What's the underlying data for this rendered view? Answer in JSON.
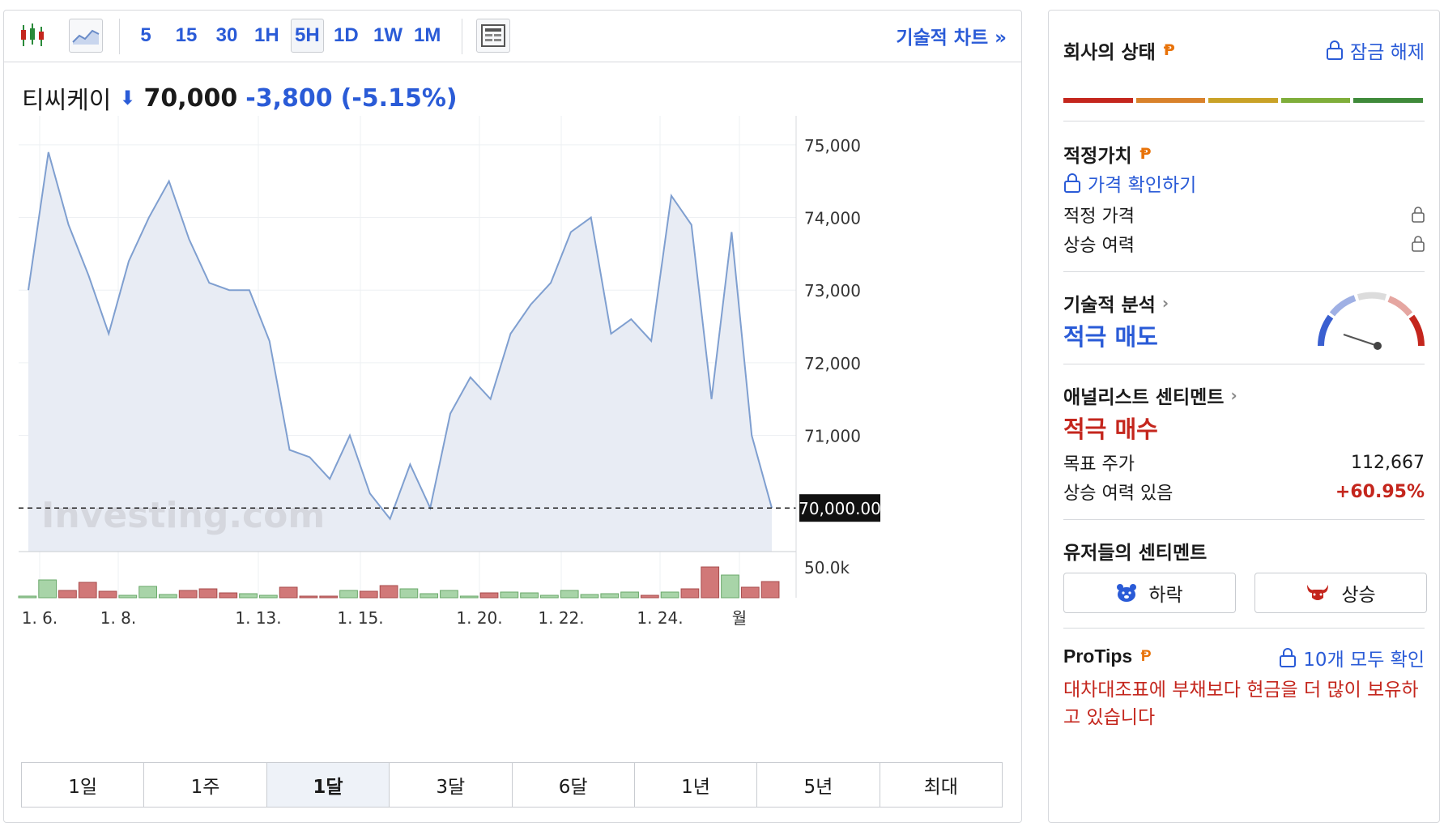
{
  "toolbar": {
    "intervals": [
      "5",
      "15",
      "30",
      "1H",
      "5H",
      "1D",
      "1W",
      "1M"
    ],
    "active_interval": "5H",
    "tech_chart_link": "기술적 차트 »"
  },
  "quote": {
    "name": "티씨케이",
    "direction": "down",
    "last": "70,000",
    "change": "-3,800",
    "change_pct": "(-5.15%)"
  },
  "chart_data": {
    "type": "area",
    "ylim": [
      69400,
      75400
    ],
    "y_ticks": [
      "75,000",
      "74,000",
      "73,000",
      "72,000",
      "71,000"
    ],
    "x_ticks": [
      "1. 6.",
      "1. 8.",
      "1. 13.",
      "1. 15.",
      "1. 20.",
      "1. 22.",
      "1. 24.",
      "월"
    ],
    "current_price_label": "70,000.00",
    "current_price": 70000,
    "watermark": "Investing.com",
    "volume_tick": "50.0k",
    "series": [
      {
        "values": [
          73000,
          74900,
          73900,
          73200,
          72400,
          73400,
          74000,
          74500,
          73700,
          73100,
          73000,
          73000,
          72300,
          70800,
          70700,
          70400,
          71000,
          70200,
          69850,
          70600,
          70000,
          71300,
          71800,
          71500,
          72400,
          72800,
          73100,
          73800,
          74000,
          72400,
          72600,
          72300,
          74300,
          73900,
          71500,
          73800,
          71000,
          70000
        ]
      }
    ],
    "volume": [
      {
        "v": 2,
        "up": true
      },
      {
        "v": 22,
        "up": true
      },
      {
        "v": 9,
        "up": false
      },
      {
        "v": 19,
        "up": false
      },
      {
        "v": 8,
        "up": false
      },
      {
        "v": 3,
        "up": true
      },
      {
        "v": 14,
        "up": true
      },
      {
        "v": 4,
        "up": true
      },
      {
        "v": 9,
        "up": false
      },
      {
        "v": 11,
        "up": false
      },
      {
        "v": 6,
        "up": false
      },
      {
        "v": 5,
        "up": true
      },
      {
        "v": 3,
        "up": true
      },
      {
        "v": 13,
        "up": false
      },
      {
        "v": 2,
        "up": false
      },
      {
        "v": 2,
        "up": false
      },
      {
        "v": 9,
        "up": true
      },
      {
        "v": 8,
        "up": false
      },
      {
        "v": 15,
        "up": false
      },
      {
        "v": 11,
        "up": true
      },
      {
        "v": 5,
        "up": true
      },
      {
        "v": 9,
        "up": true
      },
      {
        "v": 2,
        "up": true
      },
      {
        "v": 6,
        "up": false
      },
      {
        "v": 7,
        "up": true
      },
      {
        "v": 6,
        "up": true
      },
      {
        "v": 3,
        "up": true
      },
      {
        "v": 9,
        "up": true
      },
      {
        "v": 4,
        "up": true
      },
      {
        "v": 5,
        "up": true
      },
      {
        "v": 7,
        "up": true
      },
      {
        "v": 3,
        "up": false
      },
      {
        "v": 7,
        "up": true
      },
      {
        "v": 11,
        "up": false
      },
      {
        "v": 38,
        "up": false
      },
      {
        "v": 28,
        "up": true
      },
      {
        "v": 13,
        "up": false
      },
      {
        "v": 20,
        "up": false
      }
    ],
    "colors": {
      "line": "#7f9fd0",
      "fill": "#e8ecf4",
      "vol_up": "#a8d4a8",
      "vol_down": "#d17878"
    }
  },
  "ranges": [
    "1일",
    "1주",
    "1달",
    "3달",
    "6달",
    "1년",
    "5년",
    "최대"
  ],
  "active_range": "1달",
  "sidebar": {
    "health": {
      "title": "회사의 상태",
      "unlock": "잠금 해제",
      "colors": [
        "#c4261d",
        "#d9822b",
        "#c9a227",
        "#7fae3a",
        "#3f8a3a"
      ]
    },
    "fair_value": {
      "title": "적정가치",
      "check_price": "가격 확인하기",
      "rows": [
        "적정 가격",
        "상승 여력"
      ]
    },
    "technical": {
      "title": "기술적 분석",
      "verdict": "적극 매도"
    },
    "analyst": {
      "title": "애널리스트 센티멘트",
      "verdict": "적극 매수",
      "target_label": "목표 주가",
      "target_value": "112,667",
      "upside_label": "상승 여력 있음",
      "upside_value": "+60.95%"
    },
    "user_sentiment": {
      "title": "유저들의 센티멘트",
      "bear": "하락",
      "bull": "상승"
    },
    "protips": {
      "title": "ProTips",
      "see_all": "10개 모두 확인",
      "tip": "대차대조표에 부채보다 현금을 더 많이 보유하고 있습니다"
    }
  }
}
